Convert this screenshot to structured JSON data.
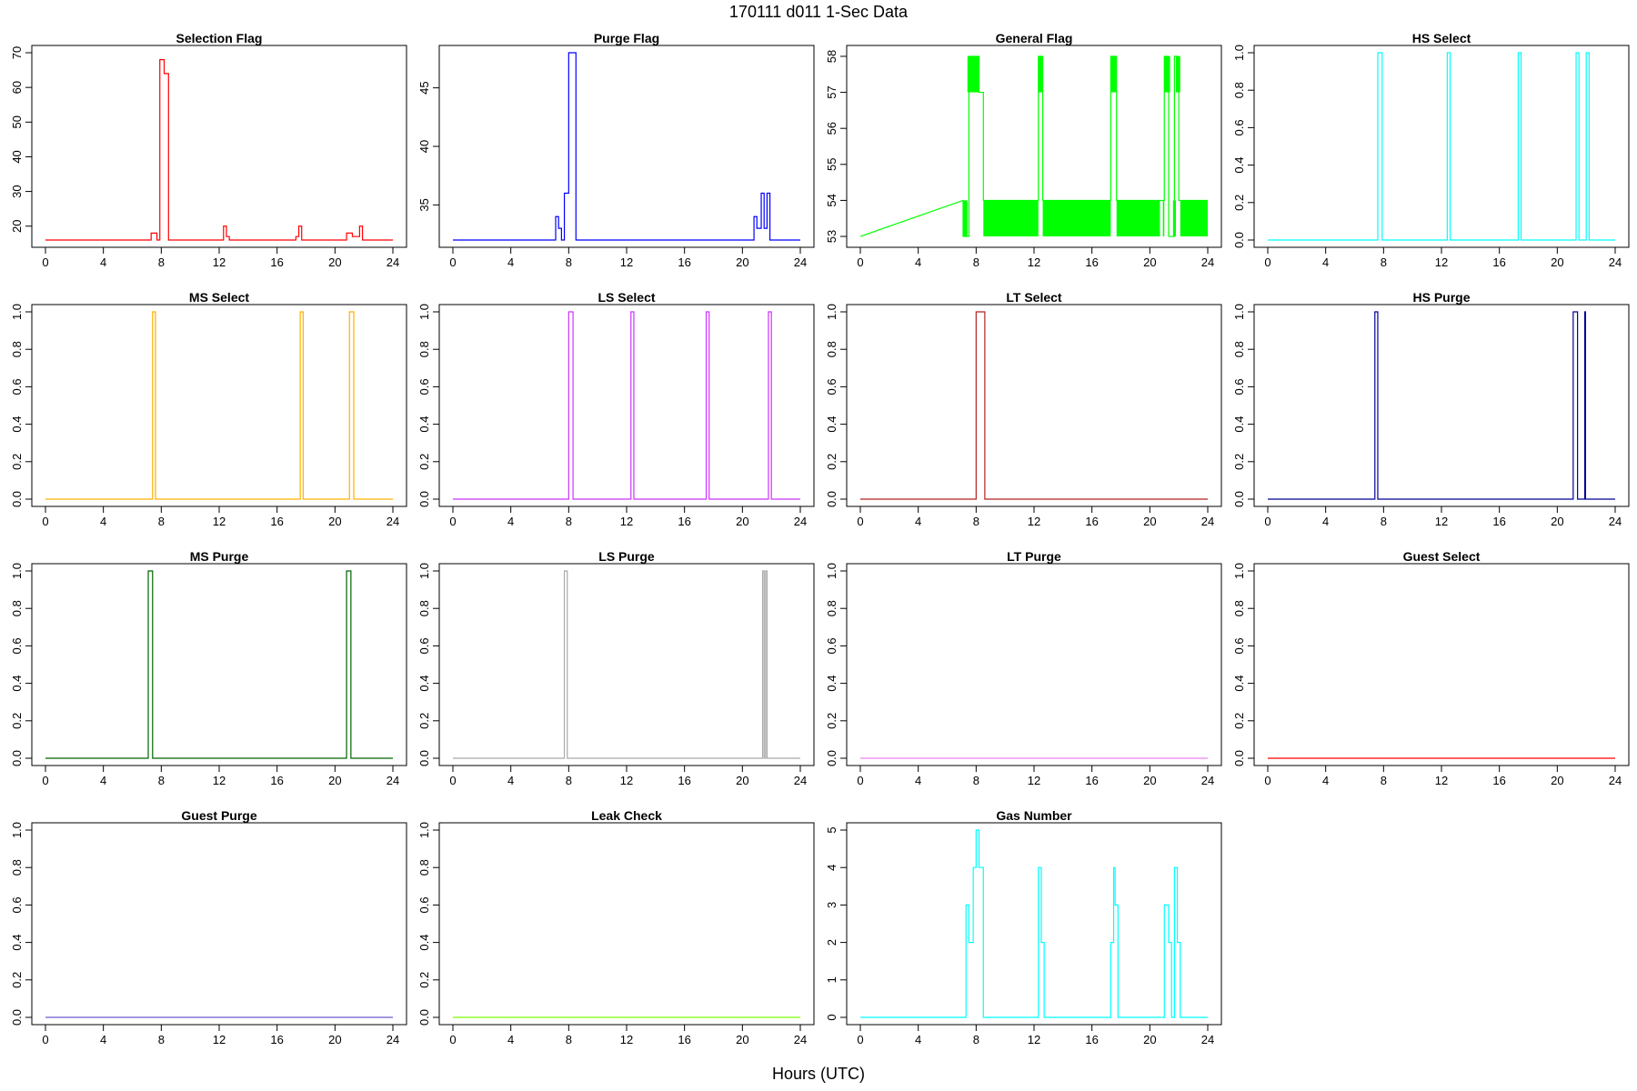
{
  "title": "170111   d011   1-Sec Data",
  "xlabel": "Hours (UTC)",
  "chart_data": [
    {
      "type": "line",
      "title": "Selection Flag",
      "color": "#ff0000",
      "xlim": [
        0,
        24
      ],
      "xticks": [
        0,
        4,
        8,
        12,
        16,
        20,
        24
      ],
      "ylim": [
        16,
        70
      ],
      "yticks": [
        20,
        30,
        40,
        50,
        60,
        70
      ],
      "x": [
        0,
        7.3,
        7.3,
        7.7,
        7.7,
        7.9,
        7.9,
        8.2,
        8.2,
        8.5,
        8.5,
        12.3,
        12.3,
        12.5,
        12.5,
        12.7,
        12.7,
        17.3,
        17.3,
        17.5,
        17.5,
        17.7,
        17.7,
        20.8,
        20.8,
        21.2,
        21.2,
        21.7,
        21.7,
        21.9,
        21.9,
        24
      ],
      "y": [
        16,
        16,
        18,
        18,
        16,
        16,
        68,
        68,
        64,
        64,
        16,
        16,
        20,
        20,
        17,
        17,
        16,
        16,
        17,
        17,
        20,
        20,
        16,
        16,
        18,
        18,
        17,
        17,
        20,
        20,
        16,
        16
      ],
      "ylabel": ""
    },
    {
      "type": "line",
      "title": "Purge Flag",
      "color": "#0000ff",
      "xlim": [
        0,
        24
      ],
      "xticks": [
        0,
        4,
        8,
        12,
        16,
        20,
        24
      ],
      "ylim": [
        32,
        48
      ],
      "yticks": [
        35,
        40,
        45
      ],
      "x": [
        0,
        7.1,
        7.1,
        7.3,
        7.3,
        7.5,
        7.5,
        7.7,
        7.7,
        8.0,
        8.0,
        8.5,
        8.5,
        20.8,
        20.8,
        21.0,
        21.0,
        21.3,
        21.3,
        21.5,
        21.5,
        21.7,
        21.7,
        21.9,
        21.9,
        24
      ],
      "y": [
        32,
        32,
        34,
        34,
        33,
        33,
        32,
        32,
        36,
        36,
        48,
        48,
        32,
        32,
        34,
        34,
        33,
        33,
        36,
        36,
        33,
        33,
        36,
        36,
        32,
        32
      ],
      "ylabel": ""
    },
    {
      "type": "line",
      "title": "General Flag",
      "color": "#00ff00",
      "xlim": [
        0,
        24
      ],
      "xticks": [
        0,
        4,
        8,
        12,
        16,
        20,
        24
      ],
      "ylim": [
        52.9,
        58.1
      ],
      "yticks": [
        53,
        54,
        55,
        56,
        57,
        58
      ],
      "x": [
        0,
        7.1,
        7.1,
        7.5,
        7.5,
        8.2,
        8.2,
        8.5,
        8.5,
        12.3,
        12.3,
        12.6,
        12.6,
        17.3,
        17.3,
        17.7,
        17.7,
        21.0,
        21.0,
        21.3,
        21.3,
        21.7,
        21.7,
        22.0,
        22.0,
        24
      ],
      "y": [
        53,
        54,
        53,
        53,
        58,
        58,
        57,
        57,
        54,
        54,
        58,
        58,
        54,
        54,
        58,
        58,
        54,
        54,
        58,
        58,
        53,
        53,
        58,
        58,
        54,
        54
      ],
      "bands": [
        {
          "x0": 7.1,
          "x1": 7.4,
          "y0": 53,
          "y1": 54
        },
        {
          "x0": 7.4,
          "x1": 8.2,
          "y0": 57,
          "y1": 58
        },
        {
          "x0": 8.5,
          "x1": 12.3,
          "y0": 53,
          "y1": 54
        },
        {
          "x0": 12.3,
          "x1": 12.6,
          "y0": 57,
          "y1": 58
        },
        {
          "x0": 12.6,
          "x1": 17.3,
          "y0": 53,
          "y1": 54
        },
        {
          "x0": 17.3,
          "x1": 17.7,
          "y0": 57,
          "y1": 58
        },
        {
          "x0": 17.7,
          "x1": 20.7,
          "y0": 53,
          "y1": 54
        },
        {
          "x0": 20.9,
          "x1": 21.0,
          "y0": 53,
          "y1": 54
        },
        {
          "x0": 21.0,
          "x1": 21.4,
          "y0": 57,
          "y1": 58
        },
        {
          "x0": 21.6,
          "x1": 21.8,
          "y0": 53,
          "y1": 54
        },
        {
          "x0": 21.8,
          "x1": 22.1,
          "y0": 57,
          "y1": 58
        },
        {
          "x0": 22.1,
          "x1": 24,
          "y0": 53,
          "y1": 54
        }
      ],
      "ylabel": ""
    },
    {
      "type": "line",
      "title": "HS Select",
      "color": "#00ffff",
      "xlim": [
        0,
        24
      ],
      "xticks": [
        0,
        4,
        8,
        12,
        16,
        20,
        24
      ],
      "ylim": [
        0,
        1
      ],
      "yticks": [
        0.0,
        0.2,
        0.4,
        0.6,
        0.8,
        1.0
      ],
      "x": [
        0,
        7.6,
        7.6,
        7.9,
        7.9,
        12.4,
        12.4,
        12.6,
        12.6,
        17.3,
        17.3,
        17.5,
        17.5,
        21.3,
        21.3,
        21.5,
        21.5,
        22.0,
        22.0,
        22.2,
        22.2,
        24
      ],
      "y": [
        0,
        0,
        1,
        1,
        0,
        0,
        1,
        1,
        0,
        0,
        1,
        1,
        0,
        0,
        1,
        1,
        0,
        0,
        1,
        1,
        0,
        0
      ],
      "ylabel": ""
    },
    {
      "type": "line",
      "title": "MS Select",
      "color": "#ffb000",
      "xlim": [
        0,
        24
      ],
      "xticks": [
        0,
        4,
        8,
        12,
        16,
        20,
        24
      ],
      "ylim": [
        0,
        1
      ],
      "yticks": [
        0.0,
        0.2,
        0.4,
        0.6,
        0.8,
        1.0
      ],
      "x": [
        0,
        7.4,
        7.4,
        7.6,
        7.6,
        17.6,
        17.6,
        17.8,
        17.8,
        21.0,
        21.0,
        21.3,
        21.3,
        24
      ],
      "y": [
        0,
        0,
        1,
        1,
        0,
        0,
        1,
        1,
        0,
        0,
        1,
        1,
        0,
        0
      ],
      "ylabel": ""
    },
    {
      "type": "line",
      "title": "LS Select",
      "color": "#cc33ff",
      "xlim": [
        0,
        24
      ],
      "xticks": [
        0,
        4,
        8,
        12,
        16,
        20,
        24
      ],
      "ylim": [
        0,
        1
      ],
      "yticks": [
        0.0,
        0.2,
        0.4,
        0.6,
        0.8,
        1.0
      ],
      "x": [
        0,
        8.0,
        8.0,
        8.3,
        8.3,
        12.3,
        12.3,
        12.5,
        12.5,
        17.5,
        17.5,
        17.7,
        17.7,
        21.8,
        21.8,
        22.0,
        22.0,
        24
      ],
      "y": [
        0,
        0,
        1,
        1,
        0,
        0,
        1,
        1,
        0,
        0,
        1,
        1,
        0,
        0,
        1,
        1,
        0,
        0
      ],
      "ylabel": ""
    },
    {
      "type": "line",
      "title": "LT Select",
      "color": "#b22222",
      "xlim": [
        0,
        24
      ],
      "xticks": [
        0,
        4,
        8,
        12,
        16,
        20,
        24
      ],
      "ylim": [
        0,
        1
      ],
      "yticks": [
        0.0,
        0.2,
        0.4,
        0.6,
        0.8,
        1.0
      ],
      "x": [
        0,
        8.0,
        8.0,
        8.6,
        8.6,
        24
      ],
      "y": [
        0,
        0,
        1,
        1,
        0,
        0
      ],
      "ylabel": ""
    },
    {
      "type": "line",
      "title": "HS Purge",
      "color": "#000099",
      "xlim": [
        0,
        24
      ],
      "xticks": [
        0,
        4,
        8,
        12,
        16,
        20,
        24
      ],
      "ylim": [
        0,
        1
      ],
      "yticks": [
        0.0,
        0.2,
        0.4,
        0.6,
        0.8,
        1.0
      ],
      "x": [
        0,
        7.4,
        7.4,
        7.6,
        7.6,
        21.1,
        21.1,
        21.4,
        21.4,
        21.9,
        21.9,
        21.95,
        21.95,
        24
      ],
      "y": [
        0,
        0,
        1,
        1,
        0,
        0,
        1,
        1,
        0,
        0,
        1,
        1,
        0,
        0
      ],
      "ylabel": ""
    },
    {
      "type": "line",
      "title": "MS Purge",
      "color": "#006400",
      "xlim": [
        0,
        24
      ],
      "xticks": [
        0,
        4,
        8,
        12,
        16,
        20,
        24
      ],
      "ylim": [
        0,
        1
      ],
      "yticks": [
        0.0,
        0.2,
        0.4,
        0.6,
        0.8,
        1.0
      ],
      "x": [
        0,
        7.1,
        7.1,
        7.4,
        7.4,
        20.8,
        20.8,
        21.1,
        21.1,
        24
      ],
      "y": [
        0,
        0,
        1,
        1,
        0,
        0,
        1,
        1,
        0,
        0
      ],
      "ylabel": ""
    },
    {
      "type": "line",
      "title": "LS Purge",
      "color": "#a9a9a9",
      "xlim": [
        0,
        24
      ],
      "xticks": [
        0,
        4,
        8,
        12,
        16,
        20,
        24
      ],
      "ylim": [
        0,
        1
      ],
      "yticks": [
        0.0,
        0.2,
        0.4,
        0.6,
        0.8,
        1.0
      ],
      "x": [
        0,
        7.7,
        7.7,
        7.9,
        7.9,
        21.4,
        21.4,
        21.5,
        21.5,
        21.6,
        21.6,
        21.7,
        21.7,
        24
      ],
      "y": [
        0,
        0,
        1,
        1,
        0,
        0,
        1,
        1,
        0,
        0,
        1,
        1,
        0,
        0
      ],
      "ylabel": ""
    },
    {
      "type": "line",
      "title": "LT Purge",
      "color": "#ee82ee",
      "xlim": [
        0,
        24
      ],
      "xticks": [
        0,
        4,
        8,
        12,
        16,
        20,
        24
      ],
      "ylim": [
        0,
        1
      ],
      "yticks": [
        0.0,
        0.2,
        0.4,
        0.6,
        0.8,
        1.0
      ],
      "x": [
        0,
        24
      ],
      "y": [
        0,
        0
      ],
      "ylabel": ""
    },
    {
      "type": "line",
      "title": "Guest Select",
      "color": "#ff0000",
      "xlim": [
        0,
        24
      ],
      "xticks": [
        0,
        4,
        8,
        12,
        16,
        20,
        24
      ],
      "ylim": [
        0,
        1
      ],
      "yticks": [
        0.0,
        0.2,
        0.4,
        0.6,
        0.8,
        1.0
      ],
      "x": [
        0,
        24
      ],
      "y": [
        0,
        0
      ],
      "ylabel": ""
    },
    {
      "type": "line",
      "title": "Guest Purge",
      "color": "#6a5acd",
      "xlim": [
        0,
        24
      ],
      "xticks": [
        0,
        4,
        8,
        12,
        16,
        20,
        24
      ],
      "ylim": [
        0,
        1
      ],
      "yticks": [
        0.0,
        0.2,
        0.4,
        0.6,
        0.8,
        1.0
      ],
      "x": [
        0,
        24
      ],
      "y": [
        0,
        0
      ],
      "ylabel": ""
    },
    {
      "type": "line",
      "title": "Leak Check",
      "color": "#7cfc00",
      "xlim": [
        0,
        24
      ],
      "xticks": [
        0,
        4,
        8,
        12,
        16,
        20,
        24
      ],
      "ylim": [
        0,
        1
      ],
      "yticks": [
        0.0,
        0.2,
        0.4,
        0.6,
        0.8,
        1.0
      ],
      "x": [
        0,
        24
      ],
      "y": [
        0,
        0
      ],
      "ylabel": ""
    },
    {
      "type": "line",
      "title": "Gas Number",
      "color": "#00ffff",
      "xlim": [
        0,
        24
      ],
      "xticks": [
        0,
        4,
        8,
        12,
        16,
        20,
        24
      ],
      "ylim": [
        0,
        5
      ],
      "yticks": [
        0,
        1,
        2,
        3,
        4,
        5
      ],
      "x": [
        0,
        7.3,
        7.3,
        7.5,
        7.5,
        7.8,
        7.8,
        8.0,
        8.0,
        8.2,
        8.2,
        8.5,
        8.5,
        12.3,
        12.3,
        12.5,
        12.5,
        12.7,
        12.7,
        17.3,
        17.3,
        17.5,
        17.5,
        17.6,
        17.6,
        17.8,
        17.8,
        21.0,
        21.0,
        21.3,
        21.3,
        21.5,
        21.5,
        21.7,
        21.7,
        21.9,
        21.9,
        22.1,
        22.1,
        24
      ],
      "y": [
        0,
        0,
        3,
        3,
        2,
        2,
        4,
        4,
        5,
        5,
        4,
        4,
        0,
        0,
        4,
        4,
        2,
        2,
        0,
        0,
        2,
        2,
        4,
        4,
        3,
        3,
        0,
        0,
        3,
        3,
        2,
        2,
        0,
        0,
        4,
        4,
        2,
        2,
        0,
        0
      ],
      "ylabel": ""
    }
  ]
}
